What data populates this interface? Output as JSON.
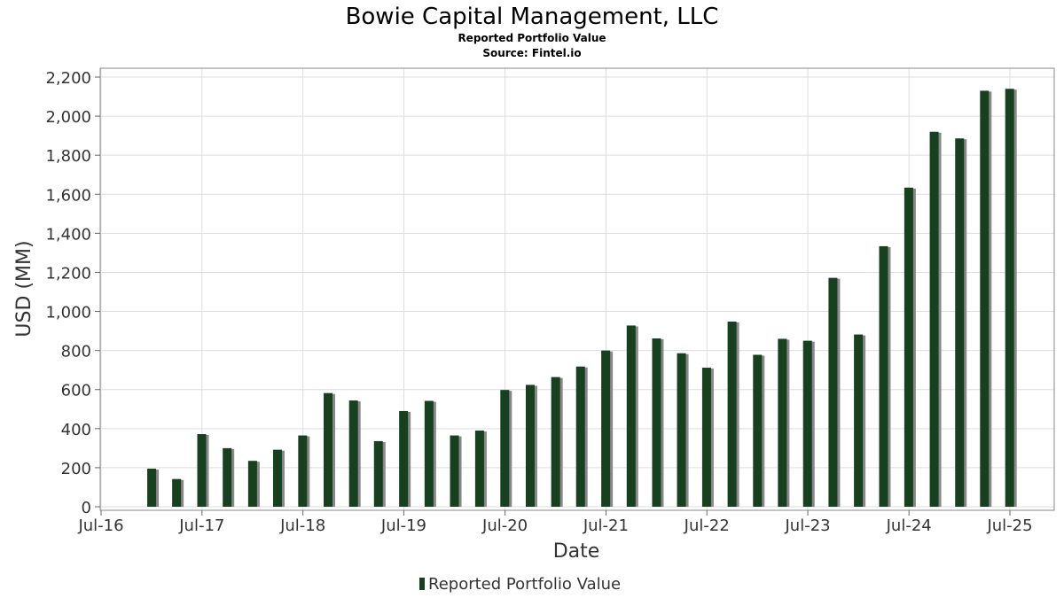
{
  "chart_data": {
    "type": "bar",
    "title": "Bowie Capital Management, LLC",
    "subtitle_lines": [
      "Reported Portfolio Value",
      "Source: Fintel.io"
    ],
    "xlabel": "Date",
    "ylabel": "USD (MM)",
    "ylim": [
      0,
      2250
    ],
    "yticks": [
      0,
      200,
      400,
      600,
      800,
      1000,
      1200,
      1400,
      1600,
      1800,
      2000,
      2200
    ],
    "ytick_labels": [
      "0",
      "200",
      "400",
      "600",
      "800",
      "1,000",
      "1,200",
      "1,400",
      "1,600",
      "1,800",
      "2,000",
      "2,200"
    ],
    "xlim": [
      "2016-07-01",
      "2025-11-01"
    ],
    "xticks": [
      "2016-07-01",
      "2017-07-01",
      "2018-07-01",
      "2019-07-01",
      "2020-07-01",
      "2021-07-01",
      "2022-07-01",
      "2023-07-01",
      "2024-07-01",
      "2025-07-01"
    ],
    "xtick_labels": [
      "Jul-16",
      "Jul-17",
      "Jul-18",
      "Jul-19",
      "Jul-20",
      "Jul-21",
      "Jul-22",
      "Jul-23",
      "Jul-24",
      "Jul-25"
    ],
    "grid": true,
    "legend_position": "bottom-center",
    "series": [
      {
        "name": "Reported Portfolio Value",
        "color": "#17401f",
        "shadow_color": "#888888",
        "x": [
          "2016-12-31",
          "2017-03-31",
          "2017-06-30",
          "2017-09-30",
          "2017-12-31",
          "2018-03-31",
          "2018-06-30",
          "2018-09-30",
          "2018-12-31",
          "2019-03-31",
          "2019-06-30",
          "2019-09-30",
          "2019-12-31",
          "2020-03-31",
          "2020-06-30",
          "2020-09-30",
          "2020-12-31",
          "2021-03-31",
          "2021-06-30",
          "2021-09-30",
          "2021-12-31",
          "2022-03-31",
          "2022-06-30",
          "2022-09-30",
          "2022-12-31",
          "2023-03-31",
          "2023-06-30",
          "2023-09-30",
          "2023-12-31",
          "2024-03-31",
          "2024-06-30",
          "2024-09-30",
          "2024-12-31",
          "2025-03-31",
          "2025-06-30"
        ],
        "values": [
          195,
          142,
          372,
          300,
          235,
          292,
          365,
          582,
          544,
          336,
          490,
          542,
          365,
          390,
          598,
          624,
          664,
          718,
          800,
          928,
          862,
          786,
          712,
          948,
          778,
          860,
          850,
          1172,
          882,
          1334,
          1634,
          1920,
          1886,
          2130,
          2140
        ]
      }
    ]
  }
}
